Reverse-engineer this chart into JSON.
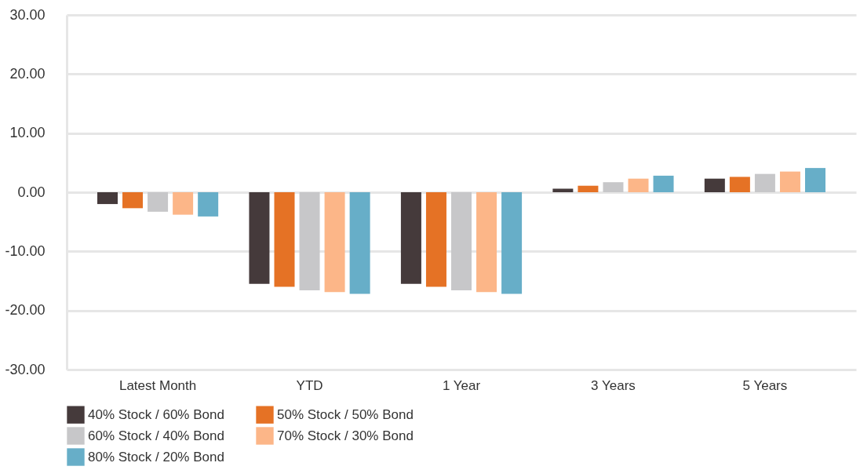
{
  "chart_data": {
    "type": "bar",
    "categories": [
      "Latest Month",
      "YTD",
      "1 Year",
      "3 Years",
      "5 Years"
    ],
    "series": [
      {
        "name": "40% Stock / 60% Bond",
        "color": "#453a3b",
        "values": [
          -2.0,
          -15.5,
          -15.5,
          0.6,
          2.3
        ]
      },
      {
        "name": "50% Stock / 50% Bond",
        "color": "#e57225",
        "values": [
          -2.7,
          -16.0,
          -16.0,
          1.1,
          2.6
        ]
      },
      {
        "name": "60% Stock / 40% Bond",
        "color": "#c7c7c9",
        "values": [
          -3.3,
          -16.6,
          -16.6,
          1.7,
          3.1
        ]
      },
      {
        "name": "70% Stock / 30% Bond",
        "color": "#fcb688",
        "values": [
          -3.8,
          -16.9,
          -16.9,
          2.3,
          3.5
        ]
      },
      {
        "name": "80% Stock / 20% Bond",
        "color": "#67aec8",
        "values": [
          -4.1,
          -17.2,
          -17.2,
          2.8,
          4.1
        ]
      }
    ],
    "ylim": [
      -30,
      30
    ],
    "yticks": [
      {
        "value": -30,
        "label": "-30.00"
      },
      {
        "value": -20,
        "label": "-20.00"
      },
      {
        "value": -10,
        "label": "-10.00"
      },
      {
        "value": 0,
        "label": "0.00"
      },
      {
        "value": 10,
        "label": "10.00"
      },
      {
        "value": 20,
        "label": "20.00"
      },
      {
        "value": 30,
        "label": "30.00"
      }
    ],
    "grid": "y",
    "legend": "bottom"
  }
}
